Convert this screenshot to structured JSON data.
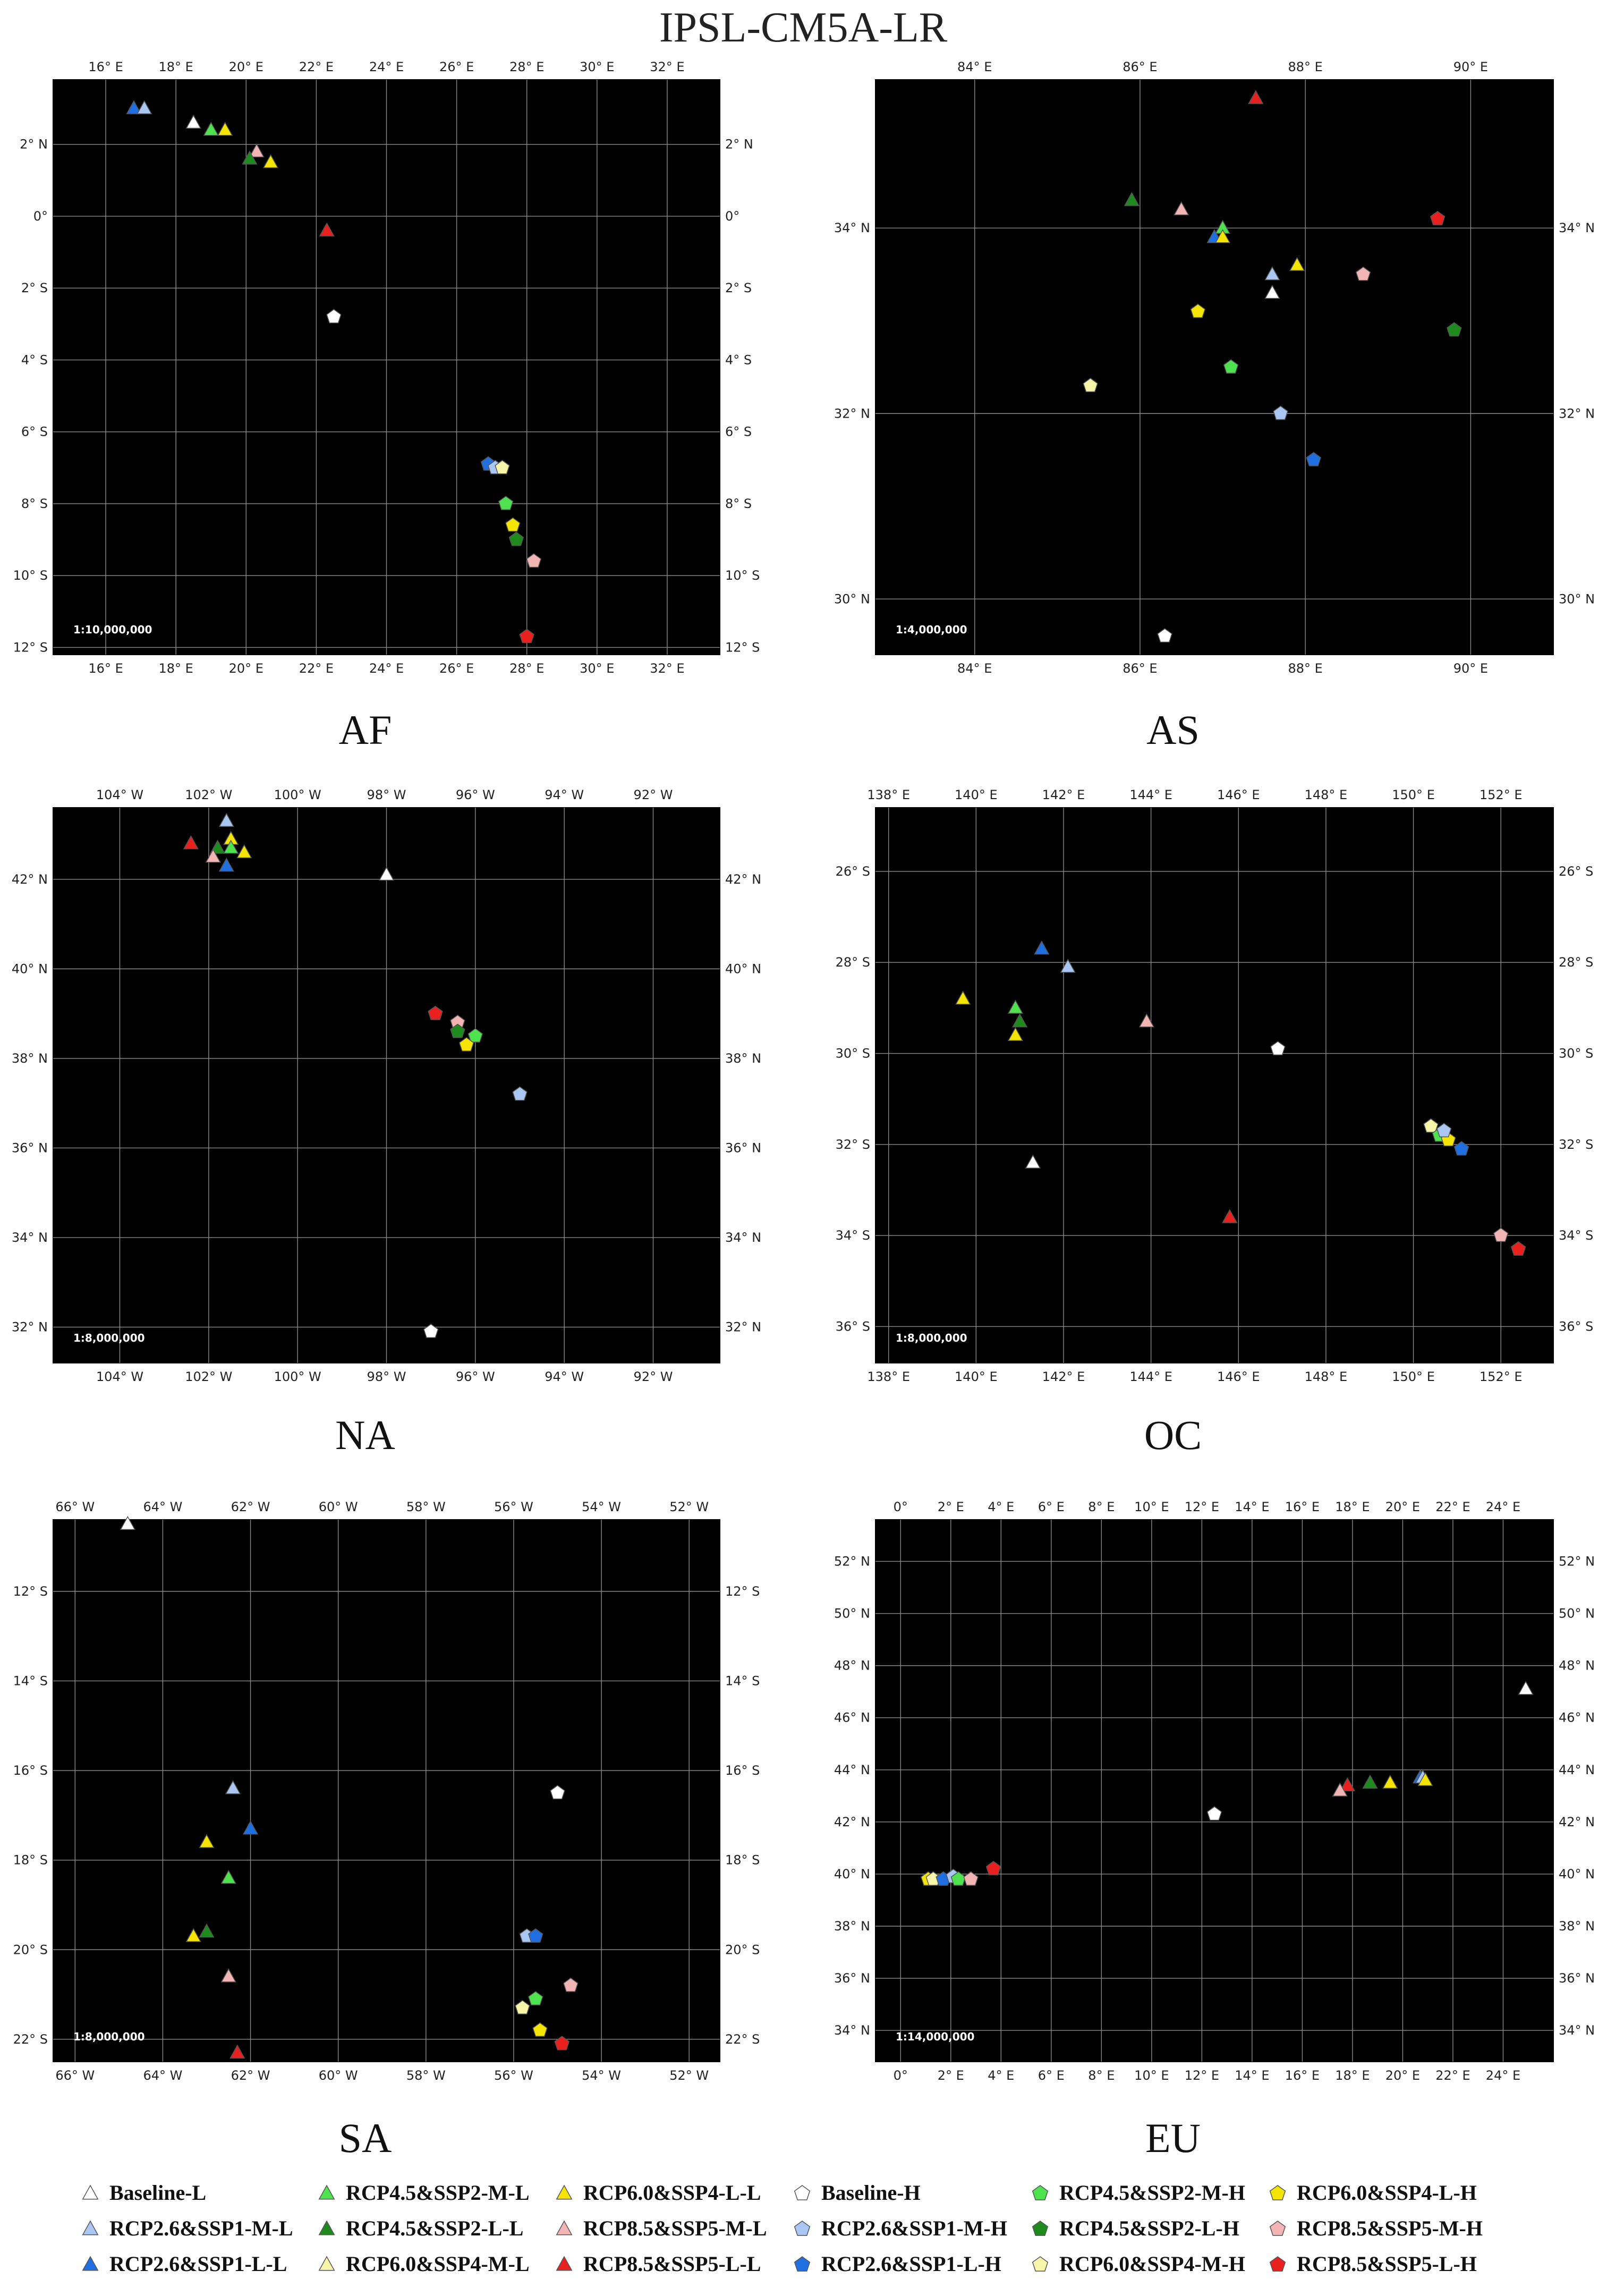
{
  "title": "IPSL-CM5A-LR",
  "symbols": {
    "Baseline-L": {
      "shape": "triangle",
      "color": "#ffffff"
    },
    "RCP2.6&SSP1-M-L": {
      "shape": "triangle",
      "color": "#a9c7f2"
    },
    "RCP2.6&SSP1-L-L": {
      "shape": "triangle",
      "color": "#1f6fe0"
    },
    "RCP4.5&SSP2-M-L": {
      "shape": "triangle",
      "color": "#4fe24f"
    },
    "RCP4.5&SSP2-L-L": {
      "shape": "triangle",
      "color": "#1e8a1e"
    },
    "RCP6.0&SSP4-L-L": {
      "shape": "triangle",
      "color": "#f5e400"
    },
    "RCP6.0&SSP4-M-L": {
      "shape": "triangle",
      "color": "#f7f5a8"
    },
    "RCP8.5&SSP5-M-L": {
      "shape": "triangle",
      "color": "#f3b4b4"
    },
    "RCP8.5&SSP5-L-L": {
      "shape": "triangle",
      "color": "#e8201e"
    },
    "Baseline-H": {
      "shape": "pentagon",
      "color": "#ffffff"
    },
    "RCP2.6&SSP1-M-H": {
      "shape": "pentagon",
      "color": "#a9c7f2"
    },
    "RCP2.6&SSP1-L-H": {
      "shape": "pentagon",
      "color": "#1f6fe0"
    },
    "RCP4.5&SSP2-M-H": {
      "shape": "pentagon",
      "color": "#4fe24f"
    },
    "RCP4.5&SSP2-L-H": {
      "shape": "pentagon",
      "color": "#1e8a1e"
    },
    "RCP6.0&SSP4-M-H": {
      "shape": "pentagon",
      "color": "#f7f5a8"
    },
    "RCP6.0&SSP4-L-H": {
      "shape": "pentagon",
      "color": "#f5e400"
    },
    "RCP8.5&SSP5-M-H": {
      "shape": "pentagon",
      "color": "#f3b4b4"
    },
    "RCP8.5&SSP5-L-H": {
      "shape": "pentagon",
      "color": "#e8201e"
    }
  },
  "legend": [
    [
      "Baseline-L",
      "RCP4.5&SSP2-M-L",
      "RCP6.0&SSP4-L-L",
      "Baseline-H",
      "RCP4.5&SSP2-M-H",
      "RCP6.0&SSP4-L-H"
    ],
    [
      "RCP2.6&SSP1-M-L",
      "RCP4.5&SSP2-L-L",
      "RCP8.5&SSP5-M-L",
      "RCP2.6&SSP1-M-H",
      "RCP4.5&SSP2-L-H",
      "RCP8.5&SSP5-M-H"
    ],
    [
      "RCP2.6&SSP1-L-L",
      "RCP6.0&SSP4-M-L",
      "RCP8.5&SSP5-L-L",
      "RCP2.6&SSP1-L-H",
      "RCP6.0&SSP4-M-H",
      "RCP8.5&SSP5-L-H"
    ]
  ],
  "chart_data": [
    {
      "type": "scatter",
      "region": "AF",
      "scale": "1:10,000,000",
      "background": "#000000",
      "xlim": [
        14.5,
        33.5
      ],
      "ylim": [
        -12.2,
        3.8
      ],
      "xticks": [
        16,
        18,
        20,
        22,
        24,
        26,
        28,
        30,
        32
      ],
      "x_hemi": [
        "E",
        "W"
      ],
      "yticks": [
        2,
        0,
        -2,
        -4,
        -6,
        -8,
        -10,
        -12
      ],
      "y_hemi": [
        "N",
        "S"
      ],
      "points": [
        {
          "s": "RCP2.6&SSP1-L-L",
          "x": 16.8,
          "y": 3.0
        },
        {
          "s": "RCP2.6&SSP1-M-L",
          "x": 17.1,
          "y": 3.0
        },
        {
          "s": "Baseline-L",
          "x": 18.5,
          "y": 2.6
        },
        {
          "s": "RCP4.5&SSP2-M-L",
          "x": 19.0,
          "y": 2.4
        },
        {
          "s": "RCP6.0&SSP4-L-L",
          "x": 19.4,
          "y": 2.4
        },
        {
          "s": "RCP8.5&SSP5-M-L",
          "x": 20.3,
          "y": 1.8
        },
        {
          "s": "RCP4.5&SSP2-L-L",
          "x": 20.1,
          "y": 1.6
        },
        {
          "s": "RCP6.0&SSP4-L-L",
          "x": 20.7,
          "y": 1.5
        },
        {
          "s": "RCP8.5&SSP5-L-L",
          "x": 22.3,
          "y": -0.4
        },
        {
          "s": "Baseline-H",
          "x": 22.5,
          "y": -2.8
        },
        {
          "s": "RCP2.6&SSP1-L-H",
          "x": 26.9,
          "y": -6.9
        },
        {
          "s": "RCP2.6&SSP1-M-H",
          "x": 27.1,
          "y": -7.0
        },
        {
          "s": "RCP6.0&SSP4-M-H",
          "x": 27.3,
          "y": -7.0
        },
        {
          "s": "RCP4.5&SSP2-M-H",
          "x": 27.4,
          "y": -8.0
        },
        {
          "s": "RCP6.0&SSP4-L-H",
          "x": 27.6,
          "y": -8.6
        },
        {
          "s": "RCP4.5&SSP2-L-H",
          "x": 27.7,
          "y": -9.0
        },
        {
          "s": "RCP8.5&SSP5-M-H",
          "x": 28.2,
          "y": -9.6
        },
        {
          "s": "RCP8.5&SSP5-L-H",
          "x": 28.0,
          "y": -11.7
        }
      ]
    },
    {
      "type": "scatter",
      "region": "AS",
      "scale": "1:4,000,000",
      "background": "#000000",
      "xlim": [
        82.8,
        91.0
      ],
      "ylim": [
        29.4,
        35.6
      ],
      "xticks": [
        84,
        86,
        88,
        90
      ],
      "x_hemi": [
        "E",
        "W"
      ],
      "yticks": [
        34,
        32,
        30
      ],
      "y_hemi": [
        "N",
        "S"
      ],
      "points": [
        {
          "s": "RCP8.5&SSP5-L-L",
          "x": 87.4,
          "y": 35.4
        },
        {
          "s": "RCP4.5&SSP2-L-L",
          "x": 85.9,
          "y": 34.3
        },
        {
          "s": "RCP8.5&SSP5-M-L",
          "x": 86.5,
          "y": 34.2
        },
        {
          "s": "RCP8.5&SSP5-L-H",
          "x": 89.6,
          "y": 34.1
        },
        {
          "s": "RCP4.5&SSP2-M-L",
          "x": 87.0,
          "y": 34.0
        },
        {
          "s": "RCP2.6&SSP1-L-L",
          "x": 86.9,
          "y": 33.9
        },
        {
          "s": "RCP6.0&SSP4-L-L",
          "x": 87.0,
          "y": 33.9
        },
        {
          "s": "RCP6.0&SSP4-L-L",
          "x": 87.9,
          "y": 33.6
        },
        {
          "s": "RCP2.6&SSP1-M-L",
          "x": 87.6,
          "y": 33.5
        },
        {
          "s": "RCP8.5&SSP5-M-H",
          "x": 88.7,
          "y": 33.5
        },
        {
          "s": "Baseline-L",
          "x": 87.6,
          "y": 33.3
        },
        {
          "s": "RCP6.0&SSP4-L-H",
          "x": 86.7,
          "y": 33.1
        },
        {
          "s": "RCP4.5&SSP2-L-H",
          "x": 89.8,
          "y": 32.9
        },
        {
          "s": "RCP4.5&SSP2-M-H",
          "x": 87.1,
          "y": 32.5
        },
        {
          "s": "RCP6.0&SSP4-M-H",
          "x": 85.4,
          "y": 32.3
        },
        {
          "s": "RCP2.6&SSP1-M-H",
          "x": 87.7,
          "y": 32.0
        },
        {
          "s": "RCP2.6&SSP1-L-H",
          "x": 88.1,
          "y": 31.5
        },
        {
          "s": "Baseline-H",
          "x": 86.3,
          "y": 29.6
        }
      ]
    },
    {
      "type": "scatter",
      "region": "NA",
      "scale": "1:8,000,000",
      "background": "#000000",
      "xlim": [
        -105.5,
        -90.5
      ],
      "ylim": [
        31.2,
        43.6
      ],
      "xticks": [
        -104,
        -102,
        -100,
        -98,
        -96,
        -94,
        -92
      ],
      "x_hemi": [
        "E",
        "W"
      ],
      "yticks": [
        42,
        40,
        38,
        36,
        34,
        32
      ],
      "y_hemi": [
        "N",
        "S"
      ],
      "points": [
        {
          "s": "RCP2.6&SSP1-M-L",
          "x": -101.6,
          "y": 43.3
        },
        {
          "s": "RCP6.0&SSP4-L-L",
          "x": -101.5,
          "y": 42.9
        },
        {
          "s": "RCP8.5&SSP5-L-L",
          "x": -102.4,
          "y": 42.8
        },
        {
          "s": "RCP4.5&SSP2-L-L",
          "x": -101.8,
          "y": 42.7
        },
        {
          "s": "RCP4.5&SSP2-M-L",
          "x": -101.5,
          "y": 42.7
        },
        {
          "s": "RCP6.0&SSP4-L-L",
          "x": -101.2,
          "y": 42.6
        },
        {
          "s": "RCP8.5&SSP5-M-L",
          "x": -101.9,
          "y": 42.5
        },
        {
          "s": "RCP2.6&SSP1-L-L",
          "x": -101.6,
          "y": 42.3
        },
        {
          "s": "Baseline-L",
          "x": -98.0,
          "y": 42.1
        },
        {
          "s": "RCP8.5&SSP5-L-H",
          "x": -96.9,
          "y": 39.0
        },
        {
          "s": "RCP8.5&SSP5-M-H",
          "x": -96.4,
          "y": 38.8
        },
        {
          "s": "RCP4.5&SSP2-L-H",
          "x": -96.4,
          "y": 38.6
        },
        {
          "s": "RCP4.5&SSP2-M-H",
          "x": -96.0,
          "y": 38.5
        },
        {
          "s": "RCP6.0&SSP4-L-H",
          "x": -96.2,
          "y": 38.3
        },
        {
          "s": "RCP2.6&SSP1-M-H",
          "x": -95.0,
          "y": 37.2
        },
        {
          "s": "Baseline-H",
          "x": -97.0,
          "y": 31.9
        }
      ]
    },
    {
      "type": "scatter",
      "region": "OC",
      "scale": "1:8,000,000",
      "background": "#000000",
      "xlim": [
        137.7,
        153.2
      ],
      "ylim": [
        -36.8,
        -24.6
      ],
      "xticks": [
        138,
        140,
        142,
        144,
        146,
        148,
        150,
        152
      ],
      "x_hemi": [
        "E",
        "W"
      ],
      "yticks": [
        -26,
        -28,
        -30,
        -32,
        -34,
        -36
      ],
      "y_hemi": [
        "N",
        "S"
      ],
      "points": [
        {
          "s": "RCP2.6&SSP1-L-L",
          "x": 141.5,
          "y": -27.7
        },
        {
          "s": "RCP2.6&SSP1-M-L",
          "x": 142.1,
          "y": -28.1
        },
        {
          "s": "RCP6.0&SSP4-L-L",
          "x": 139.7,
          "y": -28.8
        },
        {
          "s": "RCP4.5&SSP2-M-L",
          "x": 140.9,
          "y": -29.0
        },
        {
          "s": "RCP4.5&SSP2-L-L",
          "x": 141.0,
          "y": -29.3
        },
        {
          "s": "RCP8.5&SSP5-M-L",
          "x": 143.9,
          "y": -29.3
        },
        {
          "s": "RCP6.0&SSP4-L-L",
          "x": 140.9,
          "y": -29.6
        },
        {
          "s": "Baseline-H",
          "x": 146.9,
          "y": -29.9
        },
        {
          "s": "RCP6.0&SSP4-M-H",
          "x": 150.4,
          "y": -31.6
        },
        {
          "s": "RCP4.5&SSP2-M-H",
          "x": 150.6,
          "y": -31.8
        },
        {
          "s": "RCP6.0&SSP4-L-H",
          "x": 150.8,
          "y": -31.9
        },
        {
          "s": "RCP2.6&SSP1-M-H",
          "x": 150.7,
          "y": -31.7
        },
        {
          "s": "RCP2.6&SSP1-L-H",
          "x": 151.1,
          "y": -32.1
        },
        {
          "s": "Baseline-L",
          "x": 141.3,
          "y": -32.4
        },
        {
          "s": "RCP8.5&SSP5-L-L",
          "x": 145.8,
          "y": -33.6
        },
        {
          "s": "RCP8.5&SSP5-M-H",
          "x": 152.0,
          "y": -34.0
        },
        {
          "s": "RCP8.5&SSP5-L-H",
          "x": 152.4,
          "y": -34.3
        }
      ]
    },
    {
      "type": "scatter",
      "region": "SA",
      "scale": "1:8,000,000",
      "background": "#000000",
      "xlim": [
        -66.5,
        -51.3
      ],
      "ylim": [
        -22.5,
        -10.4
      ],
      "xticks": [
        -66,
        -64,
        -62,
        -60,
        -58,
        -56,
        -54,
        -52
      ],
      "x_hemi": [
        "E",
        "W"
      ],
      "yticks": [
        -12,
        -14,
        -16,
        -18,
        -20,
        -22
      ],
      "y_hemi": [
        "N",
        "S"
      ],
      "points": [
        {
          "s": "Baseline-L",
          "x": -64.8,
          "y": -10.5
        },
        {
          "s": "RCP2.6&SSP1-M-L",
          "x": -62.4,
          "y": -16.4
        },
        {
          "s": "Baseline-H",
          "x": -55.0,
          "y": -16.5
        },
        {
          "s": "RCP2.6&SSP1-L-L",
          "x": -62.0,
          "y": -17.3
        },
        {
          "s": "RCP6.0&SSP4-L-L",
          "x": -63.0,
          "y": -17.6
        },
        {
          "s": "RCP4.5&SSP2-M-L",
          "x": -62.5,
          "y": -18.4
        },
        {
          "s": "RCP4.5&SSP2-L-L",
          "x": -63.0,
          "y": -19.6
        },
        {
          "s": "RCP6.0&SSP4-L-L",
          "x": -63.3,
          "y": -19.7
        },
        {
          "s": "RCP2.6&SSP1-M-H",
          "x": -55.7,
          "y": -19.7
        },
        {
          "s": "RCP2.6&SSP1-L-H",
          "x": -55.5,
          "y": -19.7
        },
        {
          "s": "RCP8.5&SSP5-M-L",
          "x": -62.5,
          "y": -20.6
        },
        {
          "s": "RCP8.5&SSP5-M-H",
          "x": -54.7,
          "y": -20.8
        },
        {
          "s": "RCP4.5&SSP2-M-H",
          "x": -55.5,
          "y": -21.1
        },
        {
          "s": "RCP6.0&SSP4-M-H",
          "x": -55.8,
          "y": -21.3
        },
        {
          "s": "RCP6.0&SSP4-L-H",
          "x": -55.4,
          "y": -21.8
        },
        {
          "s": "RCP8.5&SSP5-L-H",
          "x": -54.9,
          "y": -22.1
        },
        {
          "s": "RCP8.5&SSP5-L-L",
          "x": -62.3,
          "y": -22.3
        }
      ]
    },
    {
      "type": "scatter",
      "region": "EU",
      "scale": "1:14,000,000",
      "background": "#000000",
      "xlim": [
        -1.0,
        26.0
      ],
      "ylim": [
        32.8,
        53.6
      ],
      "xticks": [
        0,
        2,
        4,
        6,
        8,
        10,
        12,
        14,
        16,
        18,
        20,
        22,
        24
      ],
      "x_hemi": [
        "E",
        "W"
      ],
      "yticks": [
        52,
        50,
        48,
        46,
        44,
        42,
        40,
        38,
        36,
        34
      ],
      "y_hemi": [
        "N",
        "S"
      ],
      "points": [
        {
          "s": "Baseline-L",
          "x": 24.9,
          "y": 47.1
        },
        {
          "s": "RCP2.6&SSP1-L-L",
          "x": 20.7,
          "y": 43.7
        },
        {
          "s": "RCP2.6&SSP1-M-L",
          "x": 20.8,
          "y": 43.7
        },
        {
          "s": "RCP6.0&SSP4-L-L",
          "x": 20.9,
          "y": 43.6
        },
        {
          "s": "RCP4.5&SSP2-L-L",
          "x": 18.7,
          "y": 43.5
        },
        {
          "s": "RCP6.0&SSP4-L-L",
          "x": 19.5,
          "y": 43.5
        },
        {
          "s": "RCP8.5&SSP5-L-L",
          "x": 17.8,
          "y": 43.4
        },
        {
          "s": "RCP8.5&SSP5-M-L",
          "x": 17.5,
          "y": 43.2
        },
        {
          "s": "Baseline-H",
          "x": 12.5,
          "y": 42.3
        },
        {
          "s": "RCP8.5&SSP5-L-H",
          "x": 3.7,
          "y": 40.2
        },
        {
          "s": "RCP6.0&SSP4-L-H",
          "x": 1.1,
          "y": 39.8
        },
        {
          "s": "RCP6.0&SSP4-M-H",
          "x": 1.3,
          "y": 39.8
        },
        {
          "s": "RCP2.6&SSP1-L-H",
          "x": 1.7,
          "y": 39.8
        },
        {
          "s": "RCP2.6&SSP1-M-H",
          "x": 2.1,
          "y": 39.9
        },
        {
          "s": "RCP4.5&SSP2-M-H",
          "x": 2.3,
          "y": 39.8
        },
        {
          "s": "RCP8.5&SSP5-M-H",
          "x": 2.8,
          "y": 39.8
        }
      ]
    }
  ]
}
